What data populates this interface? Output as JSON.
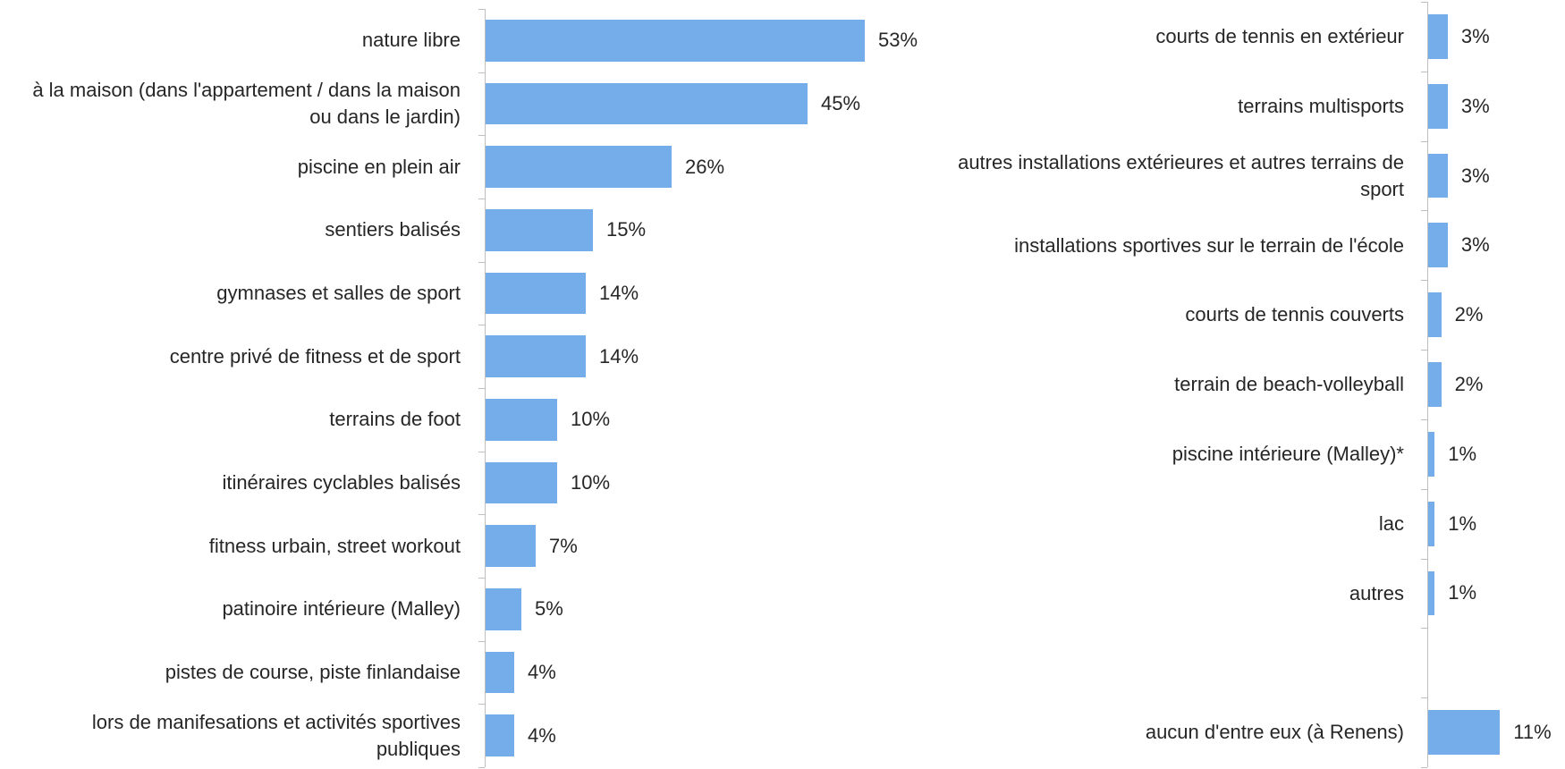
{
  "chart_data": [
    {
      "type": "bar",
      "orientation": "horizontal",
      "color": "#74ade9",
      "categories": [
        "nature libre",
        "à la maison (dans l'appartement / dans la maison ou dans le jardin)",
        "piscine en plein air",
        "sentiers balisés",
        "gymnases et salles de sport",
        "centre privé de fitness et de sport",
        "terrains de foot",
        "itinéraires cyclables balisés",
        "fitness urbain, street workout",
        "patinoire intérieure (Malley)",
        "pistes de course, piste finlandaise",
        "lors de manifesations et activités sportives publiques"
      ],
      "values": [
        53,
        45,
        26,
        15,
        14,
        14,
        10,
        10,
        7,
        5,
        4,
        4
      ],
      "value_labels": [
        "53%",
        "45%",
        "26%",
        "15%",
        "14%",
        "14%",
        "10%",
        "10%",
        "7%",
        "5%",
        "4%",
        "4%"
      ]
    },
    {
      "type": "bar",
      "orientation": "horizontal",
      "color": "#74ade9",
      "categories": [
        "courts de tennis en extérieur",
        "terrains multisports",
        "autres installations extérieures et autres terrains de sport",
        "installations sportives sur le terrain de l'école",
        "courts de tennis couverts",
        "terrain de beach-volleyball",
        "piscine intérieure (Malley)*",
        "lac",
        "autres",
        null,
        "aucun d'entre eux (à Renens)"
      ],
      "values": [
        3,
        3,
        3,
        3,
        2,
        2,
        1,
        1,
        1,
        null,
        11
      ],
      "value_labels": [
        "3%",
        "3%",
        "3%",
        "3%",
        "2%",
        "2%",
        "1%",
        "1%",
        "1%",
        null,
        "11%"
      ]
    }
  ]
}
